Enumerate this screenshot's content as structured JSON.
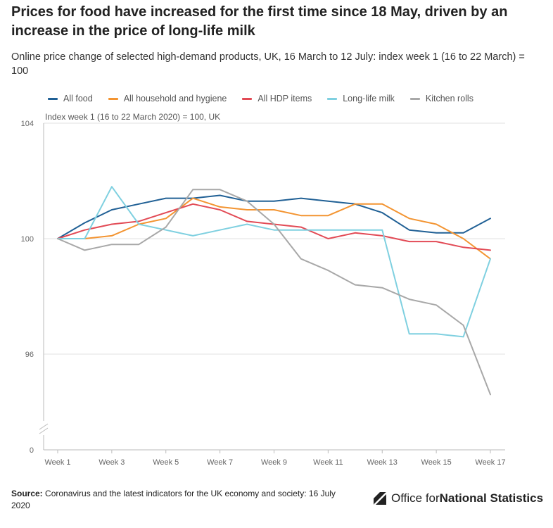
{
  "header": {
    "title": "Prices for food have increased for the first time since 18 May, driven by an increase in the price of long-life milk",
    "subtitle": "Online price change of selected high-demand products, UK, 16 March to 12 July: index week 1 (16 to 22 March) = 100"
  },
  "footer": {
    "source_label": "Source:",
    "source_text": "Coronavirus and the latest indicators for the UK economy and society: 16 July 2020",
    "logo_text_regular": "Office for ",
    "logo_text_bold": "National Statistics"
  },
  "chart_data": {
    "type": "line",
    "title": "Prices for food have increased for the first time since 18 May, driven by an increase in the price of long-life milk",
    "subtitle": "Online price change of selected high-demand products, UK, 16 March to 12 July: index week 1 (16 to 22 March) = 100",
    "annotation": "Index week 1 (16 to 22 March 2020) = 100, UK",
    "x": [
      "Week 1",
      "Week 2",
      "Week 3",
      "Week 4",
      "Week 5",
      "Week 6",
      "Week 7",
      "Week 8",
      "Week 9",
      "Week 10",
      "Week 11",
      "Week 12",
      "Week 13",
      "Week 14",
      "Week 15",
      "Week 16",
      "Week 17"
    ],
    "x_tick_labels": [
      "Week 1",
      "Week 3",
      "Week 5",
      "Week 7",
      "Week 9",
      "Week 11",
      "Week 13",
      "Week 15",
      "Week 17"
    ],
    "y_tick_labels": [
      "0",
      "96",
      "100",
      "104"
    ],
    "y_axis_break": true,
    "ylim": [
      94,
      104
    ],
    "grid": true,
    "legend_position": "top",
    "series": [
      {
        "name": "All food",
        "color": "#206095",
        "values": [
          100.0,
          100.55,
          101.0,
          101.2,
          101.4,
          101.4,
          101.5,
          101.3,
          101.3,
          101.4,
          101.3,
          101.2,
          100.9,
          100.3,
          100.2,
          100.2,
          100.7
        ]
      },
      {
        "name": "All household and hygiene",
        "color": "#f39431",
        "values": [
          100.0,
          100.0,
          100.1,
          100.5,
          100.7,
          101.4,
          101.1,
          101.0,
          101.0,
          100.8,
          100.8,
          101.2,
          101.2,
          100.7,
          100.5,
          100.0,
          99.3
        ]
      },
      {
        "name": "All HDP items",
        "color": "#e24a55",
        "values": [
          100.0,
          100.3,
          100.5,
          100.6,
          100.9,
          101.2,
          101.0,
          100.6,
          100.5,
          100.4,
          100.0,
          100.2,
          100.1,
          99.9,
          99.9,
          99.7,
          99.6
        ]
      },
      {
        "name": "Long-life milk",
        "color": "#7fd0e0",
        "values": [
          100.0,
          100.0,
          101.8,
          100.5,
          100.3,
          100.1,
          100.3,
          100.5,
          100.3,
          100.3,
          100.3,
          100.3,
          100.3,
          96.7,
          96.7,
          96.6,
          99.3
        ]
      },
      {
        "name": "Kitchen rolls",
        "color": "#a8a8a8",
        "values": [
          100.0,
          99.6,
          99.8,
          99.8,
          100.4,
          101.7,
          101.7,
          101.3,
          100.5,
          99.3,
          98.9,
          98.4,
          98.3,
          97.9,
          97.7,
          97.0,
          94.6
        ]
      }
    ]
  }
}
